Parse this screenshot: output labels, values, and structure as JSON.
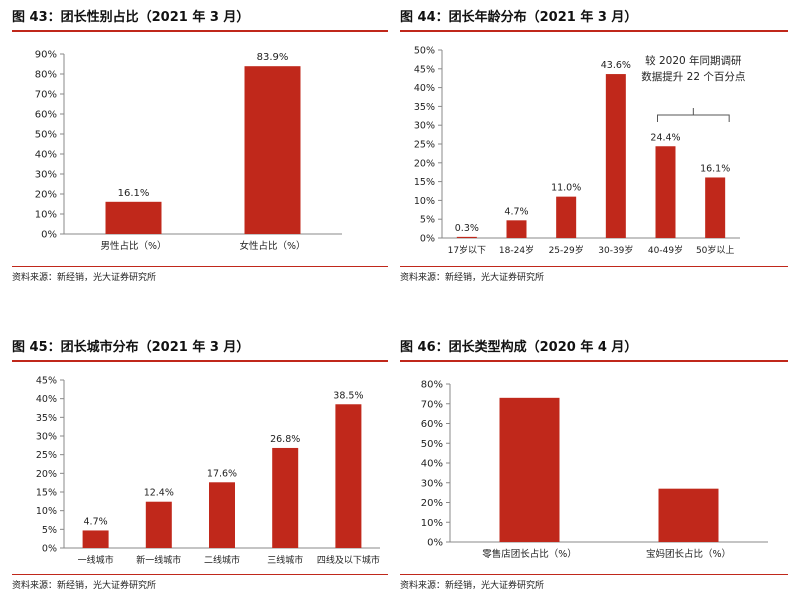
{
  "colors": {
    "bar": "#c0281b",
    "rule": "#c0281b",
    "axis": "#888888",
    "text": "#222222"
  },
  "source_text": "资料来源：新经销，光大证券研究所",
  "chart_data": [
    {
      "type": "bar",
      "title": "图 43：团长性别占比（2021 年 3 月）",
      "categories": [
        "男性占比（%）",
        "女性占比（%）"
      ],
      "values": [
        16.1,
        83.9
      ],
      "value_labels": [
        "16.1%",
        "83.9%"
      ],
      "ylim": [
        0,
        90
      ],
      "yticks": [
        0,
        10,
        20,
        30,
        40,
        50,
        60,
        70,
        80,
        90
      ],
      "ytick_labels": [
        "0%",
        "10%",
        "20%",
        "30%",
        "40%",
        "50%",
        "60%",
        "70%",
        "80%",
        "90%"
      ],
      "xlabel": "",
      "ylabel": ""
    },
    {
      "type": "bar",
      "title": "图 44：团长年龄分布（2021 年 3 月）",
      "categories": [
        "17岁以下",
        "18-24岁",
        "25-29岁",
        "30-39岁",
        "40-49岁",
        "50岁以上"
      ],
      "values": [
        0.3,
        4.7,
        11.0,
        43.6,
        24.4,
        16.1
      ],
      "value_labels": [
        "0.3%",
        "4.7%",
        "11.0%",
        "43.6%",
        "24.4%",
        "16.1%"
      ],
      "ylim": [
        0,
        50
      ],
      "yticks": [
        0,
        5,
        10,
        15,
        20,
        25,
        30,
        35,
        40,
        45,
        50
      ],
      "ytick_labels": [
        "0%",
        "5%",
        "10%",
        "15%",
        "20%",
        "25%",
        "30%",
        "35%",
        "40%",
        "45%",
        "50%"
      ],
      "annotation": {
        "lines": [
          "较 2020 年同期调研",
          "数据提升 22 个百分点"
        ],
        "applies_to": [
          "40-49岁",
          "50岁以上"
        ]
      },
      "xlabel": "",
      "ylabel": ""
    },
    {
      "type": "bar",
      "title": "图 45：团长城市分布（2021 年 3 月）",
      "categories": [
        "一线城市",
        "新一线城市",
        "二线城市",
        "三线城市",
        "四线及以下城市"
      ],
      "values": [
        4.7,
        12.4,
        17.6,
        26.8,
        38.5
      ],
      "value_labels": [
        "4.7%",
        "12.4%",
        "17.6%",
        "26.8%",
        "38.5%"
      ],
      "ylim": [
        0,
        45
      ],
      "yticks": [
        0,
        5,
        10,
        15,
        20,
        25,
        30,
        35,
        40,
        45
      ],
      "ytick_labels": [
        "0%",
        "5%",
        "10%",
        "15%",
        "20%",
        "25%",
        "30%",
        "35%",
        "40%",
        "45%"
      ],
      "xlabel": "",
      "ylabel": ""
    },
    {
      "type": "bar",
      "title": "图 46：团长类型构成（2020 年 4 月）",
      "categories": [
        "零售店团长占比（%）",
        "宝妈团长占比（%）"
      ],
      "values": [
        73,
        27
      ],
      "value_labels": [],
      "ylim": [
        0,
        80
      ],
      "yticks": [
        0,
        10,
        20,
        30,
        40,
        50,
        60,
        70,
        80
      ],
      "ytick_labels": [
        "0%",
        "10%",
        "20%",
        "30%",
        "40%",
        "50%",
        "60%",
        "70%",
        "80%"
      ],
      "xlabel": "",
      "ylabel": ""
    }
  ]
}
